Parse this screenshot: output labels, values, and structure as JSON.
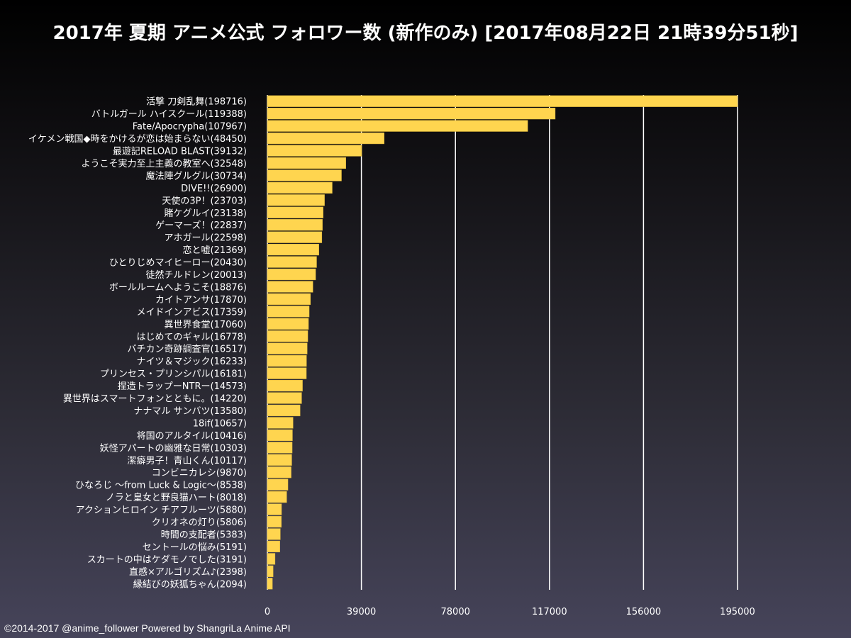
{
  "title": "2017年 夏期 アニメ公式 フォロワー数 (新作のみ) [2017年08月22日 21時39分51秒]",
  "footer": "©2014-2017 @anime_follower Powered by ShangriLa Anime API",
  "colors": {
    "bar": "#ffd54f",
    "bar_stroke": "#e0b83a",
    "grid": "#ffffff",
    "text": "#ffffff"
  },
  "chart_data": {
    "type": "bar",
    "orientation": "horizontal",
    "title": "2017年 夏期 アニメ公式 フォロワー数 (新作のみ) [2017年08月22日 21時39分51秒]",
    "xlim": [
      0,
      195000
    ],
    "xticks": [
      "0",
      "39000",
      "78000",
      "117000",
      "156000",
      "195000"
    ],
    "grid": true,
    "categories": [
      "活撃 刀剣乱舞(198716)",
      "バトルガール ハイスクール(119388)",
      "Fate/Apocrypha(107967)",
      "イケメン戦国◆時をかけるが恋は始まらない(48450)",
      "最遊記RELOAD BLAST(39132)",
      "ようこそ実力至上主義の教室へ(32548)",
      "魔法陣グルグル(30734)",
      "DIVE!!(26900)",
      "天使の3P！(23703)",
      "賭ケグルイ(23138)",
      "ゲーマーズ！(22837)",
      "アホガール(22598)",
      "恋と嘘(21369)",
      "ひとりじめマイヒーロー(20430)",
      "徒然チルドレン(20013)",
      "ボールルームへようこそ(18876)",
      "カイトアンサ(17870)",
      "メイドインアビス(17359)",
      "異世界食堂(17060)",
      "はじめてのギャル(16778)",
      "バチカン奇跡調査官(16517)",
      "ナイツ＆マジック(16233)",
      "プリンセス・プリンシパル(16181)",
      "捏造トラップーNTRー(14573)",
      "異世界はスマートフォンとともに。(14220)",
      "ナナマル サンバツ(13580)",
      "18if(10657)",
      "将国のアルタイル(10416)",
      "妖怪アパートの幽雅な日常(10303)",
      "潔癖男子！青山くん(10117)",
      "コンビニカレシ(9870)",
      "ひなろじ 〜from Luck & Logic〜(8538)",
      "ノラと皇女と野良猫ハート(8018)",
      "アクションヒロイン チアフルーツ(5880)",
      "クリオネの灯り(5806)",
      "時間の支配者(5383)",
      "セントールの悩み(5191)",
      "スカートの中はケダモノでした(3191)",
      "直感×アルゴリズム♪(2398)",
      "縁結びの妖狐ちゃん(2094)"
    ],
    "values": [
      198716,
      119388,
      107967,
      48450,
      39132,
      32548,
      30734,
      26900,
      23703,
      23138,
      22837,
      22598,
      21369,
      20430,
      20013,
      18876,
      17870,
      17359,
      17060,
      16778,
      16517,
      16233,
      16181,
      14573,
      14220,
      13580,
      10657,
      10416,
      10303,
      10117,
      9870,
      8538,
      8018,
      5880,
      5806,
      5383,
      5191,
      3191,
      2398,
      2094
    ]
  }
}
